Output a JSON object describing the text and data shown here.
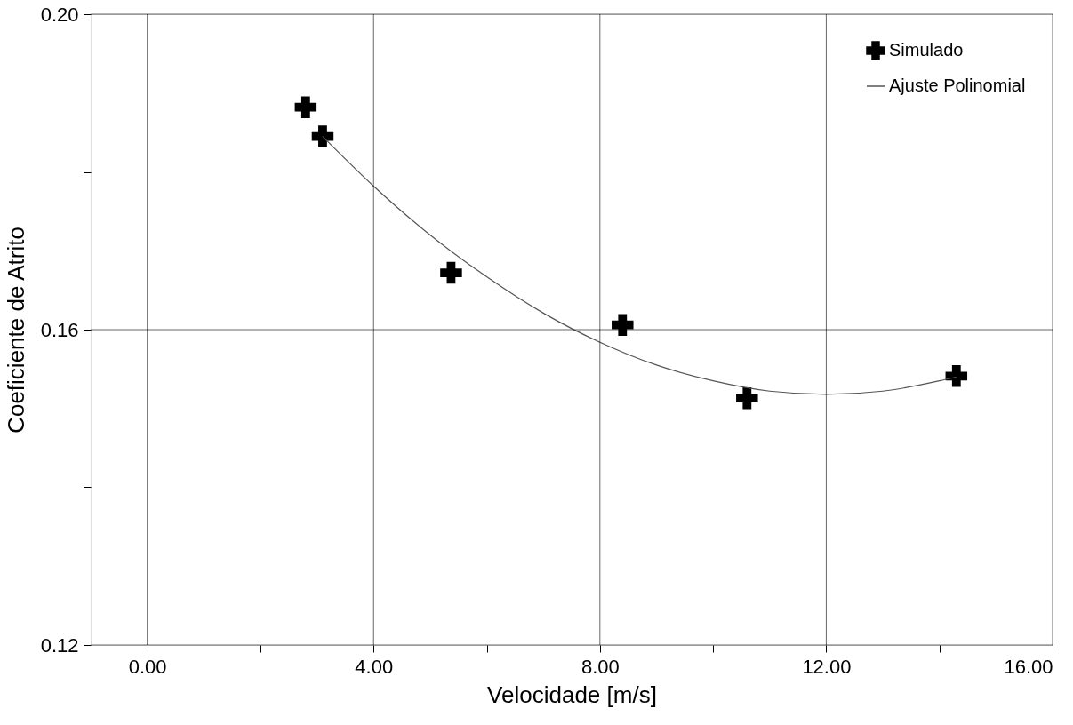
{
  "chart_data": {
    "type": "scatter",
    "xlabel": "Velocidade [m/s]",
    "ylabel": "Coeficiente de Atrito",
    "xlim": [
      -1.0,
      16.0
    ],
    "ylim": [
      0.12,
      0.2
    ],
    "xticks": [
      {
        "value": 0,
        "label": "0.00"
      },
      {
        "value": 2,
        "label": null
      },
      {
        "value": 4,
        "label": "4.00"
      },
      {
        "value": 6,
        "label": null
      },
      {
        "value": 8,
        "label": "8.00"
      },
      {
        "value": 10,
        "label": null
      },
      {
        "value": 12,
        "label": "12.00"
      },
      {
        "value": 14,
        "label": null
      },
      {
        "value": 16,
        "label": "16.00"
      }
    ],
    "yticks": [
      {
        "value": 0.12,
        "label": "0.12"
      },
      {
        "value": 0.14,
        "label": null
      },
      {
        "value": 0.16,
        "label": "0.16"
      },
      {
        "value": 0.18,
        "label": null
      },
      {
        "value": 0.2,
        "label": "0.20"
      }
    ],
    "grid": true,
    "legend": "top right",
    "series": [
      {
        "name": "Simulado",
        "color": "#000000",
        "marker": "cross",
        "x": [
          2.8,
          3.1,
          5.37,
          8.4,
          10.6,
          14.3
        ],
        "values": [
          0.1882,
          0.1845,
          0.1672,
          0.1606,
          0.1513,
          0.1541
        ]
      },
      {
        "name": "Ajuste Polinomial",
        "type": "line",
        "marker": "none",
        "color": "#555555",
        "line_style": "solid",
        "x": [
          3.1,
          4,
          5,
          6,
          7,
          8,
          9,
          10,
          11,
          12,
          13,
          14,
          14.3
        ],
        "values": [
          0.1845,
          0.1782,
          0.172,
          0.1667,
          0.1621,
          0.1584,
          0.1555,
          0.1535,
          0.1522,
          0.1518,
          0.1522,
          0.1535,
          0.154
        ]
      }
    ]
  }
}
